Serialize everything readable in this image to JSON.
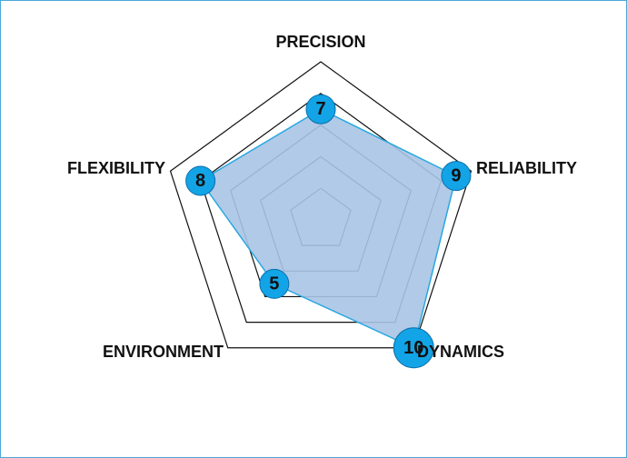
{
  "chart_data": {
    "type": "radar",
    "categories": [
      "PRECISION",
      "RELIABILITY",
      "DYNAMICS",
      "ENVIRONMENT",
      "FLEXIBILITY"
    ],
    "values": [
      7,
      9,
      10,
      5,
      8
    ],
    "value_labels": [
      "7",
      "9",
      "10",
      "5",
      "8"
    ],
    "rmax": 10,
    "rings": [
      2,
      4,
      6,
      8,
      10
    ],
    "grid": true,
    "legend": "none",
    "colors": {
      "fill": "#a9c4e6",
      "stroke": "#29a8e0",
      "marker": "#12a4e6",
      "marker_stroke": "#0c6ea8",
      "grid": "#111111",
      "frame": "#4aa8d8"
    }
  }
}
